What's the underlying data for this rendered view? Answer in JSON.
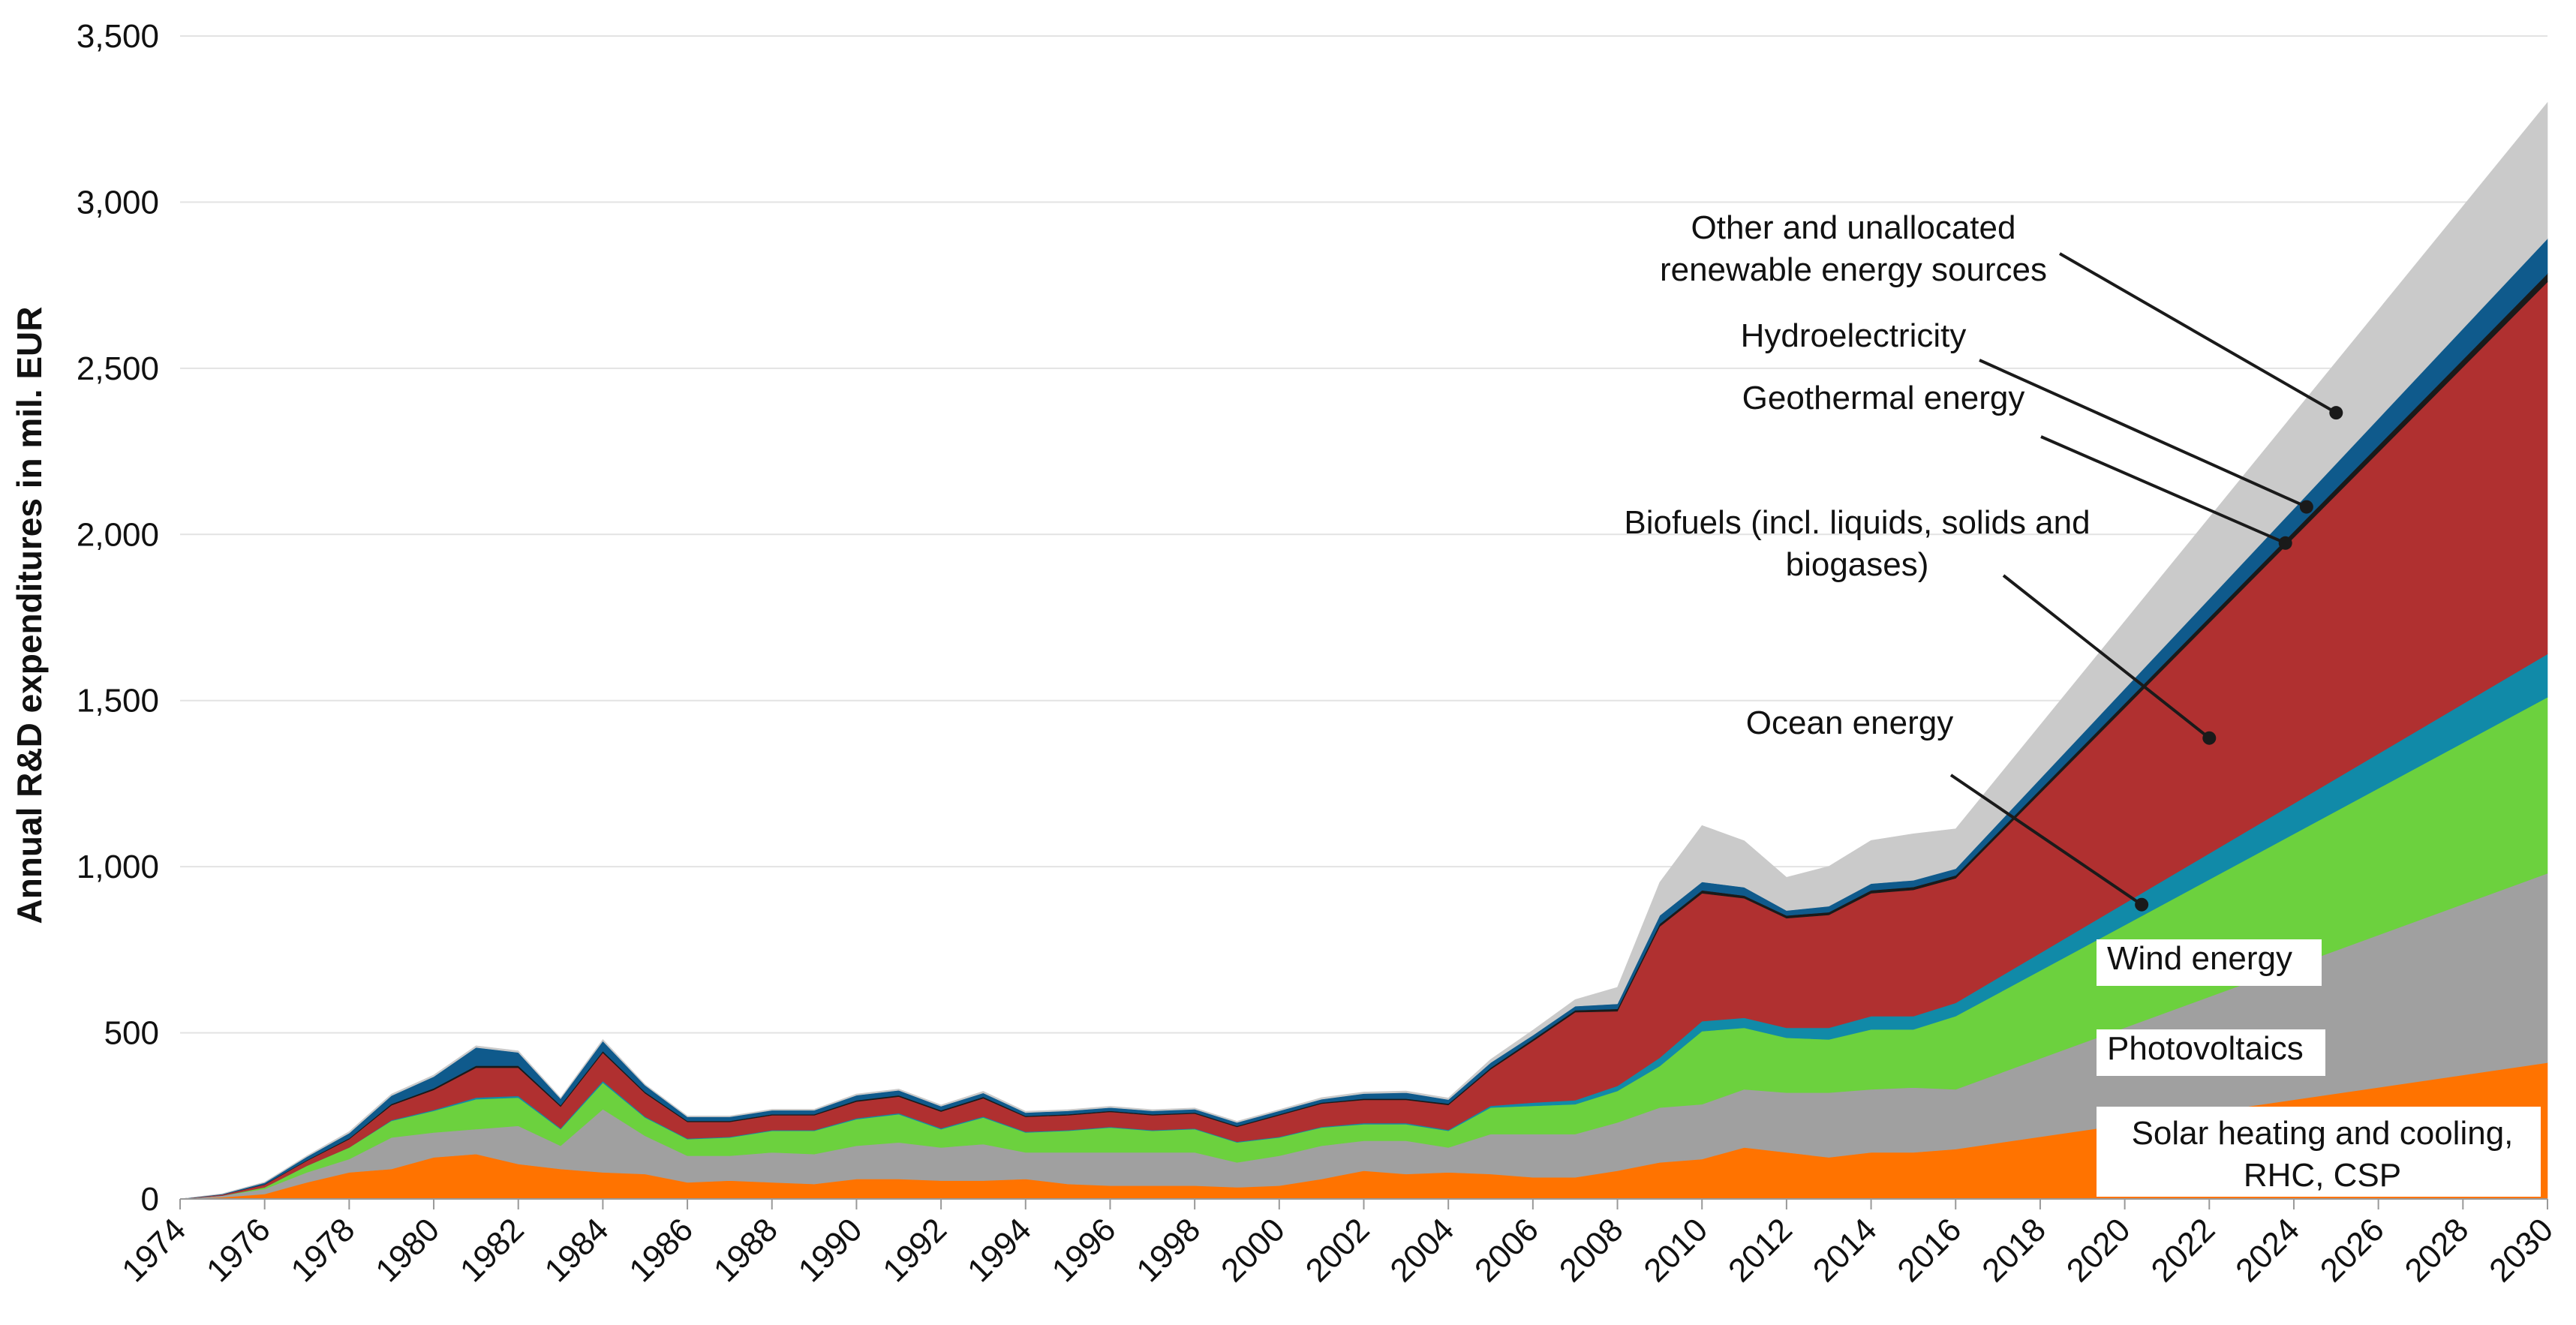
{
  "chart_data": {
    "type": "area",
    "stacked": true,
    "title": "",
    "xlabel": "",
    "ylabel": "Annual R&D expenditures in mil. EUR",
    "xlim": [
      1974,
      2030
    ],
    "ylim": [
      0,
      3500
    ],
    "y_ticks": [
      "0",
      "500",
      "1,000",
      "1,500",
      "2,000",
      "2,500",
      "3,000",
      "3,500"
    ],
    "x_ticks": [
      "1974",
      "1976",
      "1978",
      "1980",
      "1982",
      "1984",
      "1986",
      "1988",
      "1990",
      "1992",
      "1994",
      "1996",
      "1998",
      "2000",
      "2002",
      "2004",
      "2006",
      "2008",
      "2010",
      "2012",
      "2014",
      "2016",
      "2018",
      "2020",
      "2022",
      "2024",
      "2026",
      "2028",
      "2030"
    ],
    "grid": "horizontal",
    "legend": "inline labels with leader lines",
    "x": [
      1974,
      1975,
      1976,
      1977,
      1978,
      1979,
      1980,
      1981,
      1982,
      1983,
      1984,
      1985,
      1986,
      1987,
      1988,
      1989,
      1990,
      1991,
      1992,
      1993,
      1994,
      1995,
      1996,
      1997,
      1998,
      1999,
      2000,
      2001,
      2002,
      2003,
      2004,
      2005,
      2006,
      2007,
      2008,
      2009,
      2010,
      2011,
      2012,
      2013,
      2014,
      2015,
      2016,
      2030
    ],
    "series": [
      {
        "name": "Solar heating and cooling, RHC, CSP",
        "color": "#ff7300",
        "values": [
          0,
          5,
          15,
          50,
          80,
          90,
          125,
          135,
          105,
          90,
          80,
          75,
          50,
          55,
          50,
          45,
          60,
          60,
          55,
          55,
          60,
          45,
          40,
          40,
          40,
          35,
          40,
          60,
          85,
          75,
          80,
          75,
          65,
          65,
          85,
          110,
          120,
          155,
          140,
          125,
          140,
          140,
          150,
          410
        ]
      },
      {
        "name": "Photovoltaics",
        "color": "#a0a0a0",
        "values": [
          0,
          5,
          15,
          30,
          40,
          95,
          75,
          75,
          115,
          70,
          190,
          115,
          80,
          75,
          90,
          90,
          100,
          110,
          100,
          110,
          80,
          95,
          100,
          100,
          100,
          75,
          90,
          100,
          90,
          100,
          75,
          120,
          130,
          130,
          145,
          165,
          165,
          175,
          180,
          195,
          190,
          195,
          180,
          570
        ]
      },
      {
        "name": "Wind energy",
        "color": "#6cd13e",
        "values": [
          0,
          0,
          5,
          20,
          35,
          50,
          65,
          90,
          85,
          50,
          80,
          55,
          50,
          55,
          65,
          70,
          80,
          85,
          55,
          80,
          60,
          65,
          75,
          65,
          70,
          60,
          55,
          55,
          50,
          50,
          50,
          80,
          85,
          90,
          95,
          125,
          220,
          185,
          165,
          160,
          180,
          175,
          220,
          530
        ]
      },
      {
        "name": "Ocean energy",
        "color": "#118aa8",
        "values": [
          0,
          0,
          0,
          0,
          0,
          2,
          3,
          5,
          5,
          3,
          5,
          3,
          2,
          2,
          2,
          2,
          3,
          3,
          3,
          3,
          2,
          2,
          2,
          2,
          2,
          2,
          2,
          2,
          3,
          3,
          3,
          5,
          10,
          12,
          15,
          25,
          30,
          30,
          30,
          35,
          40,
          40,
          40,
          130
        ]
      },
      {
        "name": "Biofuels (incl. liquids, solids and biogases)",
        "color": "#b03030",
        "values": [
          0,
          3,
          8,
          15,
          25,
          45,
          60,
          90,
          85,
          65,
          85,
          70,
          50,
          45,
          45,
          45,
          50,
          50,
          50,
          55,
          45,
          45,
          45,
          45,
          45,
          45,
          65,
          70,
          70,
          70,
          75,
          110,
          185,
          265,
          225,
          395,
          385,
          360,
          330,
          340,
          370,
          380,
          375,
          1120
        ]
      },
      {
        "name": "Geothermal energy",
        "color": "#1a1a1a",
        "values": [
          0,
          0,
          1,
          2,
          3,
          4,
          5,
          6,
          6,
          4,
          5,
          4,
          3,
          3,
          3,
          3,
          4,
          4,
          4,
          4,
          3,
          3,
          3,
          3,
          3,
          3,
          3,
          3,
          4,
          4,
          4,
          5,
          6,
          6,
          7,
          8,
          9,
          8,
          8,
          8,
          9,
          9,
          9,
          25
        ]
      },
      {
        "name": "Hydroelectricity",
        "color": "#0f5a8c",
        "values": [
          0,
          2,
          5,
          10,
          15,
          25,
          35,
          55,
          40,
          20,
          30,
          20,
          12,
          12,
          12,
          12,
          15,
          15,
          12,
          12,
          10,
          10,
          10,
          10,
          10,
          10,
          10,
          10,
          15,
          18,
          12,
          15,
          12,
          12,
          15,
          25,
          25,
          25,
          15,
          18,
          20,
          20,
          20,
          105
        ]
      },
      {
        "name": "Other and unallocated renewable energy sources",
        "color": "#cacaca",
        "values": [
          0,
          1,
          2,
          3,
          5,
          5,
          5,
          5,
          5,
          3,
          5,
          3,
          3,
          3,
          3,
          3,
          4,
          4,
          4,
          5,
          4,
          4,
          4,
          4,
          4,
          4,
          4,
          5,
          5,
          5,
          5,
          10,
          15,
          20,
          50,
          100,
          170,
          140,
          100,
          120,
          130,
          140,
          120,
          410
        ]
      }
    ],
    "annotations": [
      {
        "lines": [
          "Other and unallocated",
          "renewable energy sources"
        ],
        "series": "Other and unallocated renewable energy sources",
        "box": false
      },
      {
        "lines": [
          "Hydroelectricity"
        ],
        "series": "Hydroelectricity",
        "box": false
      },
      {
        "lines": [
          "Geothermal energy"
        ],
        "series": "Geothermal energy",
        "box": false
      },
      {
        "lines": [
          "Biofuels (incl. liquids, solids and",
          "biogases)"
        ],
        "series": "Biofuels (incl. liquids, solids and biogases)",
        "box": false
      },
      {
        "lines": [
          "Ocean energy"
        ],
        "series": "Ocean energy",
        "box": false
      },
      {
        "lines": [
          "Wind energy"
        ],
        "series": "Wind energy",
        "box": true
      },
      {
        "lines": [
          "Photovoltaics"
        ],
        "series": "Photovoltaics",
        "box": true
      },
      {
        "lines": [
          "Solar heating and cooling,",
          "RHC, CSP"
        ],
        "series": "Solar heating and cooling, RHC, CSP",
        "box": true
      }
    ]
  }
}
